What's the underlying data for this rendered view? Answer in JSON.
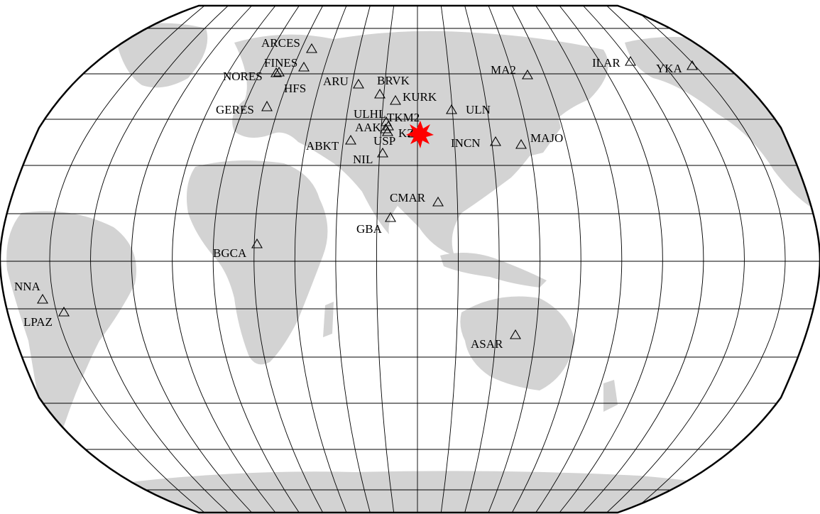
{
  "map": {
    "projection": "robinson",
    "land_color": "#d3d3d3",
    "ocean_color": "#ffffff",
    "grid_color": "#000000",
    "event_marker": {
      "shape": "star",
      "color": "#ff0000"
    }
  },
  "stations": [
    {
      "code": "ARCES"
    },
    {
      "code": "FINES"
    },
    {
      "code": "NORES"
    },
    {
      "code": "HFS"
    },
    {
      "code": "GERES"
    },
    {
      "code": "ARU"
    },
    {
      "code": "BRVK"
    },
    {
      "code": "KURK"
    },
    {
      "code": "ULN"
    },
    {
      "code": "MA2"
    },
    {
      "code": "ILAR"
    },
    {
      "code": "YKA"
    },
    {
      "code": "ULHL"
    },
    {
      "code": "TKM2"
    },
    {
      "code": "AAK"
    },
    {
      "code": "KZ"
    },
    {
      "code": "USP"
    },
    {
      "code": "ABKT"
    },
    {
      "code": "NIL"
    },
    {
      "code": "INCN"
    },
    {
      "code": "MAJO"
    },
    {
      "code": "CMAR"
    },
    {
      "code": "GBA"
    },
    {
      "code": "BGCA"
    },
    {
      "code": "NNA"
    },
    {
      "code": "LPAZ"
    },
    {
      "code": "ASAR"
    }
  ]
}
